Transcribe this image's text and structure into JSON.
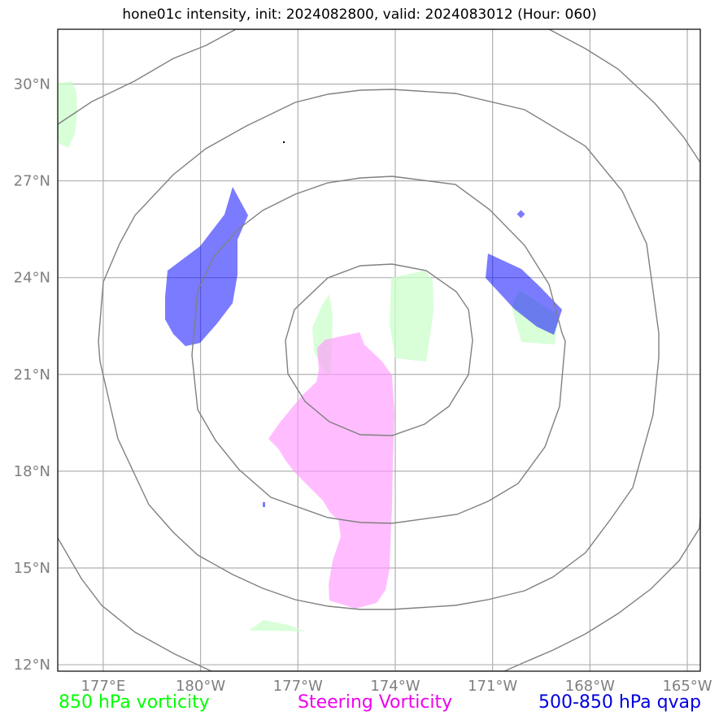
{
  "title": "hone01c intensity, init: 2024082800, valid: 2024083012 (Hour: 060)",
  "map": {
    "lat_ticks": [
      {
        "value": 30,
        "label": "30°N"
      },
      {
        "value": 27,
        "label": "27°N"
      },
      {
        "value": 24,
        "label": "24°N"
      },
      {
        "value": 21,
        "label": "21°N"
      },
      {
        "value": 18,
        "label": "18°N"
      },
      {
        "value": 15,
        "label": "15°N"
      },
      {
        "value": 12,
        "label": "12°N"
      }
    ],
    "lon_ticks": [
      {
        "value": 177,
        "label": "177°E"
      },
      {
        "value": 180,
        "label": "180°W"
      },
      {
        "value": 183,
        "label": "177°W"
      },
      {
        "value": 186,
        "label": "174°W"
      },
      {
        "value": 189,
        "label": "171°W"
      },
      {
        "value": 192,
        "label": "168°W"
      },
      {
        "value": 195,
        "label": "165°W"
      }
    ],
    "lon_range": [
      175.6,
      195.4
    ],
    "lat_range": [
      11.8,
      31.7
    ],
    "gridlines": true,
    "colors": {
      "vort850": "#ccffcc",
      "steering": "#ff99ff",
      "qvap": "#0000ff",
      "rings": "#808080",
      "grid": "#b0b0b0"
    }
  },
  "legend": {
    "vort850": {
      "label": "850 hPa vorticity",
      "color": "#00ff00"
    },
    "steering": {
      "label": "Steering Vorticity",
      "color": "#ee00ee"
    },
    "qvap": {
      "label": "500-850 hPa qvap",
      "color": "#0000dd"
    }
  }
}
